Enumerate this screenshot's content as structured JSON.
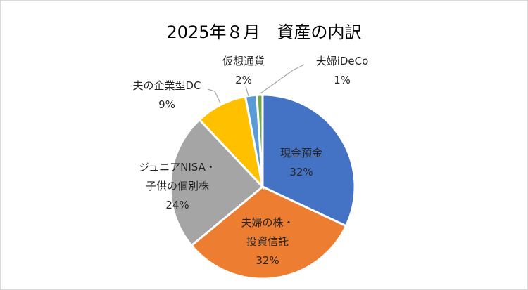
{
  "chart_data": {
    "type": "pie",
    "title": "2025年８月　資産の内訳",
    "slices": [
      {
        "label_lines": [
          "現金預金"
        ],
        "value": 32,
        "value_label": "32%",
        "color": "#4472C4"
      },
      {
        "label_lines": [
          "夫婦の株・",
          "投資信託"
        ],
        "value": 32,
        "value_label": "32%",
        "color": "#ED7D31"
      },
      {
        "label_lines": [
          "ジュニアNISA・",
          "子供の個別株"
        ],
        "value": 24,
        "value_label": "24%",
        "color": "#A5A5A5"
      },
      {
        "label_lines": [
          "夫の企業型DC"
        ],
        "value": 9,
        "value_label": "9%",
        "color": "#FFC000"
      },
      {
        "label_lines": [
          "仮想通貨"
        ],
        "value": 2,
        "value_label": "2%",
        "color": "#5B9BD5"
      },
      {
        "label_lines": [
          "夫婦iDeCo"
        ],
        "value": 1,
        "value_label": "1%",
        "color": "#70AD47"
      }
    ],
    "legend": "none"
  }
}
